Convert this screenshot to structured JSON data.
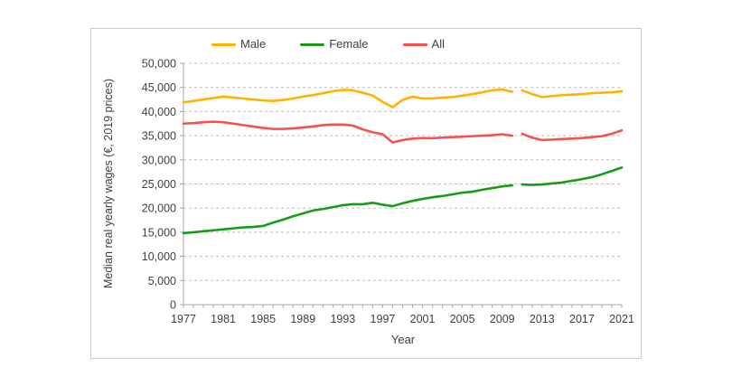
{
  "colors": {
    "male_line": "#FFB300",
    "female_line": "#189C18",
    "all_line": "#F8504F",
    "grid": "#BFBFBF",
    "axis": "#A6A6A6",
    "text": "#3F3F3F",
    "frame_border": "#C9C9C9",
    "background": "#FFFFFF"
  },
  "chart_data": {
    "type": "line",
    "title": "",
    "xlabel": "Year",
    "ylabel": "Median real yearly wages (€, 2019 prices)",
    "ylim": [
      0,
      50000
    ],
    "ytick_step": 5000,
    "y_tick_labels": [
      "0",
      "5,000",
      "10,000",
      "15,000",
      "20,000",
      "25,000",
      "30,000",
      "35,000",
      "40,000",
      "45,000",
      "50,000"
    ],
    "x": [
      1977,
      1978,
      1979,
      1980,
      1981,
      1982,
      1983,
      1984,
      1985,
      1986,
      1987,
      1988,
      1989,
      1990,
      1991,
      1992,
      1993,
      1994,
      1995,
      1996,
      1997,
      1998,
      1999,
      2000,
      2001,
      2002,
      2003,
      2004,
      2005,
      2006,
      2007,
      2008,
      2009,
      2010,
      2011,
      2012,
      2013,
      2014,
      2015,
      2016,
      2017,
      2018,
      2019,
      2020,
      2021
    ],
    "x_tick_labels": [
      "1977",
      "1981",
      "1985",
      "1989",
      "1993",
      "1997",
      "2001",
      "2005",
      "2009",
      "2013",
      "2017",
      "2021"
    ],
    "grid": "horizontal-dashed",
    "legend_position": "top",
    "series_break_note": "each series has a visible line break between 2010 and 2011",
    "series": [
      {
        "name": "Male",
        "color": "#FFB300",
        "break_after": 2010,
        "values": [
          41900,
          42200,
          42500,
          42800,
          43100,
          42900,
          42700,
          42500,
          42300,
          42200,
          42400,
          42700,
          43100,
          43400,
          43800,
          44200,
          44500,
          44400,
          43900,
          43300,
          42000,
          40900,
          42400,
          43100,
          42700,
          42700,
          42900,
          43000,
          43300,
          43600,
          44000,
          44400,
          44600,
          44100,
          44400,
          43600,
          43000,
          43200,
          43400,
          43500,
          43600,
          43800,
          43900,
          44000,
          44200
        ]
      },
      {
        "name": "Female",
        "color": "#189C18",
        "break_after": 2010,
        "values": [
          14800,
          15000,
          15200,
          15400,
          15600,
          15800,
          16000,
          16100,
          16300,
          17000,
          17600,
          18300,
          18900,
          19500,
          19800,
          20200,
          20600,
          20800,
          20800,
          21100,
          20700,
          20400,
          21000,
          21500,
          21900,
          22250,
          22500,
          22850,
          23200,
          23400,
          23800,
          24150,
          24500,
          24700,
          24900,
          24800,
          24900,
          25100,
          25300,
          25650,
          26000,
          26400,
          27000,
          27700,
          28400
        ]
      },
      {
        "name": "All",
        "color": "#F8504F",
        "break_after": 2010,
        "values": [
          37500,
          37600,
          37800,
          37900,
          37800,
          37500,
          37200,
          36900,
          36600,
          36400,
          36400,
          36500,
          36700,
          36900,
          37200,
          37300,
          37300,
          37100,
          36300,
          35700,
          35300,
          33600,
          34100,
          34400,
          34500,
          34500,
          34600,
          34700,
          34800,
          34900,
          35000,
          35100,
          35300,
          35000,
          35400,
          34600,
          34100,
          34200,
          34300,
          34400,
          34500,
          34700,
          34900,
          35400,
          36100
        ]
      }
    ]
  }
}
